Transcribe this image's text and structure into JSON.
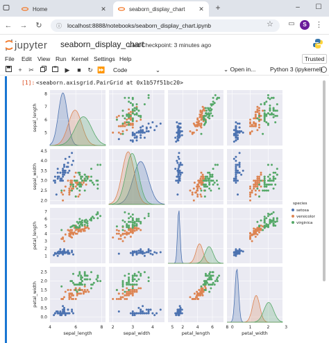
{
  "browser": {
    "tabs": [
      {
        "title": "Home",
        "active": false
      },
      {
        "title": "seaborn_display_chart",
        "active": true
      }
    ],
    "url": "localhost:8888/notebooks/seaborn_display_chart.ipynb",
    "profile_initial": "S",
    "icons": [
      "tab-list-icon",
      "jupyter-favicon",
      "close-icon",
      "new-tab-icon",
      "minimize-icon",
      "maximize-icon",
      "back-icon",
      "forward-icon",
      "reload-icon",
      "site-info-icon",
      "star-icon",
      "menu-icon"
    ]
  },
  "jupyter": {
    "logo_text": "jupyter",
    "notebook_title": "seaborn_display_chart",
    "checkpoint": "Last Checkpoint: 3 minutes ago",
    "menu": [
      "File",
      "Edit",
      "View",
      "Run",
      "Kernel",
      "Settings",
      "Help"
    ],
    "trusted": "Trusted",
    "cell_type": "Code",
    "open_in": "Open in...",
    "kernel": "Python 3 (ipykernel)",
    "toolbar_icons": [
      "save-icon",
      "add-cell-icon",
      "cut-icon",
      "copy-icon",
      "paste-icon",
      "run-icon",
      "stop-icon",
      "restart-icon",
      "fast-forward-icon"
    ]
  },
  "cell": {
    "prompt": "[1]:",
    "output_text": "<seaborn.axisgrid.PairGrid at 0x1b57f51bc20>"
  },
  "colors": {
    "setosa": "#4c72b0",
    "versicolor": "#dd8452",
    "virginica": "#55a868",
    "axes_bg": "#eaeaf2",
    "cell_bar": "#1976d2"
  },
  "chart_data": {
    "type": "scatter",
    "kind": "pairplot",
    "variables": [
      "sepal_length",
      "sepal_width",
      "petal_length",
      "petal_width"
    ],
    "hue": "species",
    "legend": {
      "title": "species",
      "entries": [
        "setosa",
        "versicolor",
        "virginica"
      ],
      "placement": "right"
    },
    "grid": true,
    "ranges": {
      "sepal_length": [
        4,
        8.3
      ],
      "sepal_width": [
        1.8,
        4.6
      ],
      "petal_length": [
        0,
        7.5
      ],
      "petal_width": [
        -0.3,
        2.8
      ]
    },
    "ticks": {
      "sepal_length": {
        "values": [
          4,
          6,
          8
        ],
        "labels": [
          "4",
          "6",
          "8"
        ]
      },
      "sepal_width": {
        "values": [
          2,
          3,
          4,
          5
        ],
        "labels": [
          "2",
          "3",
          "4",
          "5"
        ]
      },
      "petal_length": {
        "values": [
          2,
          4,
          6,
          8
        ],
        "labels": [
          "2",
          "4",
          "6",
          "8"
        ]
      },
      "petal_width": {
        "values": [
          0,
          1,
          2,
          3
        ],
        "labels": [
          "0",
          "1",
          "2",
          "3"
        ]
      }
    },
    "y_tick_labels": {
      "sepal_length": [
        "5",
        "6",
        "7",
        "8"
      ],
      "sepal_width": [
        "2.0",
        "2.5",
        "3.0",
        "3.5",
        "4.0",
        "4.5"
      ],
      "petal_length": [
        "1",
        "2",
        "3",
        "4",
        "5",
        "6",
        "7"
      ],
      "petal_width": [
        "0.0",
        "0.5",
        "1.0",
        "1.5",
        "2.0",
        "2.5"
      ]
    },
    "series": [
      {
        "name": "setosa",
        "mean": [
          5.0,
          3.4,
          1.46,
          0.25
        ],
        "sd": [
          0.35,
          0.38,
          0.17,
          0.1
        ],
        "points": [
          [
            5.1,
            3.5,
            1.4,
            0.2
          ],
          [
            4.9,
            3.0,
            1.4,
            0.2
          ],
          [
            4.7,
            3.2,
            1.3,
            0.2
          ],
          [
            4.6,
            3.1,
            1.5,
            0.2
          ],
          [
            5.0,
            3.6,
            1.4,
            0.2
          ],
          [
            5.4,
            3.9,
            1.7,
            0.4
          ],
          [
            4.6,
            3.4,
            1.4,
            0.3
          ],
          [
            5.0,
            3.4,
            1.5,
            0.2
          ],
          [
            4.4,
            2.9,
            1.4,
            0.2
          ],
          [
            4.9,
            3.1,
            1.5,
            0.1
          ],
          [
            5.4,
            3.7,
            1.5,
            0.2
          ],
          [
            4.8,
            3.4,
            1.6,
            0.2
          ],
          [
            4.8,
            3.0,
            1.4,
            0.1
          ],
          [
            4.3,
            3.0,
            1.1,
            0.1
          ],
          [
            5.8,
            4.0,
            1.2,
            0.2
          ],
          [
            5.7,
            4.4,
            1.5,
            0.4
          ],
          [
            5.4,
            3.9,
            1.3,
            0.4
          ],
          [
            5.1,
            3.5,
            1.4,
            0.3
          ],
          [
            5.7,
            3.8,
            1.7,
            0.3
          ],
          [
            5.1,
            3.8,
            1.5,
            0.3
          ],
          [
            5.4,
            3.4,
            1.7,
            0.2
          ],
          [
            5.1,
            3.7,
            1.5,
            0.4
          ],
          [
            4.6,
            3.6,
            1.0,
            0.2
          ],
          [
            5.1,
            3.3,
            1.7,
            0.5
          ],
          [
            4.8,
            3.4,
            1.9,
            0.2
          ],
          [
            5.0,
            3.0,
            1.6,
            0.2
          ],
          [
            5.0,
            3.4,
            1.6,
            0.4
          ],
          [
            5.2,
            3.5,
            1.5,
            0.2
          ],
          [
            5.2,
            3.4,
            1.4,
            0.2
          ],
          [
            4.7,
            3.2,
            1.6,
            0.2
          ],
          [
            4.8,
            3.1,
            1.6,
            0.2
          ],
          [
            5.4,
            3.4,
            1.5,
            0.4
          ],
          [
            5.2,
            4.1,
            1.5,
            0.1
          ],
          [
            5.5,
            4.2,
            1.4,
            0.2
          ],
          [
            4.9,
            3.1,
            1.5,
            0.2
          ],
          [
            5.0,
            3.2,
            1.2,
            0.2
          ],
          [
            5.5,
            3.5,
            1.3,
            0.2
          ],
          [
            4.4,
            3.0,
            1.3,
            0.2
          ],
          [
            5.1,
            3.4,
            1.5,
            0.2
          ],
          [
            5.0,
            3.5,
            1.3,
            0.3
          ],
          [
            4.5,
            2.3,
            1.3,
            0.3
          ],
          [
            4.4,
            3.2,
            1.3,
            0.2
          ],
          [
            5.0,
            3.5,
            1.6,
            0.6
          ],
          [
            5.1,
            3.8,
            1.9,
            0.4
          ],
          [
            4.8,
            3.0,
            1.4,
            0.3
          ],
          [
            5.1,
            3.8,
            1.6,
            0.2
          ],
          [
            4.6,
            3.2,
            1.4,
            0.2
          ],
          [
            5.3,
            3.7,
            1.5,
            0.2
          ],
          [
            5.0,
            3.3,
            1.4,
            0.2
          ]
        ]
      },
      {
        "name": "versicolor",
        "mean": [
          5.94,
          2.77,
          4.26,
          1.33
        ],
        "sd": [
          0.52,
          0.31,
          0.47,
          0.2
        ],
        "points": [
          [
            7.0,
            3.2,
            4.7,
            1.4
          ],
          [
            6.4,
            3.2,
            4.5,
            1.5
          ],
          [
            6.9,
            3.1,
            4.9,
            1.5
          ],
          [
            5.5,
            2.3,
            4.0,
            1.3
          ],
          [
            6.5,
            2.8,
            4.6,
            1.5
          ],
          [
            5.7,
            2.8,
            4.5,
            1.3
          ],
          [
            6.3,
            3.3,
            4.7,
            1.6
          ],
          [
            4.9,
            2.4,
            3.3,
            1.0
          ],
          [
            6.6,
            2.9,
            4.6,
            1.3
          ],
          [
            5.2,
            2.7,
            3.9,
            1.4
          ],
          [
            5.0,
            2.0,
            3.5,
            1.0
          ],
          [
            5.9,
            3.0,
            4.2,
            1.5
          ],
          [
            6.0,
            2.2,
            4.0,
            1.0
          ],
          [
            6.1,
            2.9,
            4.7,
            1.4
          ],
          [
            5.6,
            2.9,
            3.6,
            1.3
          ],
          [
            6.7,
            3.1,
            4.4,
            1.4
          ],
          [
            5.6,
            3.0,
            4.5,
            1.5
          ],
          [
            5.8,
            2.7,
            4.1,
            1.0
          ],
          [
            6.2,
            2.2,
            4.5,
            1.5
          ],
          [
            5.6,
            2.5,
            3.9,
            1.1
          ],
          [
            5.9,
            3.2,
            4.8,
            1.8
          ],
          [
            6.1,
            2.8,
            4.0,
            1.3
          ],
          [
            6.3,
            2.5,
            4.9,
            1.5
          ],
          [
            6.1,
            2.8,
            4.7,
            1.2
          ],
          [
            6.4,
            2.9,
            4.3,
            1.3
          ],
          [
            6.6,
            3.0,
            4.4,
            1.4
          ],
          [
            6.8,
            2.8,
            4.8,
            1.4
          ],
          [
            6.7,
            3.0,
            5.0,
            1.7
          ],
          [
            6.0,
            2.9,
            4.5,
            1.5
          ],
          [
            5.7,
            2.6,
            3.5,
            1.0
          ],
          [
            5.5,
            2.4,
            3.8,
            1.1
          ],
          [
            5.5,
            2.4,
            3.7,
            1.0
          ],
          [
            5.8,
            2.7,
            3.9,
            1.2
          ],
          [
            6.0,
            2.7,
            5.1,
            1.6
          ],
          [
            5.4,
            3.0,
            4.5,
            1.5
          ],
          [
            6.0,
            3.4,
            4.5,
            1.6
          ],
          [
            6.7,
            3.1,
            4.7,
            1.5
          ],
          [
            6.3,
            2.3,
            4.4,
            1.3
          ],
          [
            5.6,
            3.0,
            4.1,
            1.3
          ],
          [
            5.5,
            2.5,
            4.0,
            1.3
          ],
          [
            5.5,
            2.6,
            4.4,
            1.2
          ],
          [
            6.1,
            3.0,
            4.6,
            1.4
          ],
          [
            5.8,
            2.6,
            4.0,
            1.2
          ],
          [
            5.0,
            2.3,
            3.3,
            1.0
          ],
          [
            5.6,
            2.7,
            4.2,
            1.3
          ],
          [
            5.7,
            3.0,
            4.2,
            1.2
          ],
          [
            5.7,
            2.9,
            4.2,
            1.3
          ],
          [
            6.2,
            2.9,
            4.3,
            1.3
          ],
          [
            5.1,
            2.5,
            3.0,
            1.1
          ],
          [
            5.7,
            2.8,
            4.1,
            1.3
          ]
        ]
      },
      {
        "name": "virginica",
        "mean": [
          6.59,
          2.97,
          5.55,
          2.03
        ],
        "sd": [
          0.64,
          0.32,
          0.55,
          0.27
        ],
        "points": [
          [
            6.3,
            3.3,
            6.0,
            2.5
          ],
          [
            5.8,
            2.7,
            5.1,
            1.9
          ],
          [
            7.1,
            3.0,
            5.9,
            2.1
          ],
          [
            6.3,
            2.9,
            5.6,
            1.8
          ],
          [
            6.5,
            3.0,
            5.8,
            2.2
          ],
          [
            7.6,
            3.0,
            6.6,
            2.1
          ],
          [
            4.9,
            2.5,
            4.5,
            1.7
          ],
          [
            7.3,
            2.9,
            6.3,
            1.8
          ],
          [
            6.7,
            2.5,
            5.8,
            1.8
          ],
          [
            7.2,
            3.6,
            6.1,
            2.5
          ],
          [
            6.5,
            3.2,
            5.1,
            2.0
          ],
          [
            6.4,
            2.7,
            5.3,
            1.9
          ],
          [
            6.8,
            3.0,
            5.5,
            2.1
          ],
          [
            5.7,
            2.5,
            5.0,
            2.0
          ],
          [
            5.8,
            2.8,
            5.1,
            2.4
          ],
          [
            6.4,
            3.2,
            5.3,
            2.3
          ],
          [
            6.5,
            3.0,
            5.5,
            1.8
          ],
          [
            7.7,
            3.8,
            6.7,
            2.2
          ],
          [
            7.7,
            2.6,
            6.9,
            2.3
          ],
          [
            6.0,
            2.2,
            5.0,
            1.5
          ],
          [
            6.9,
            3.2,
            5.7,
            2.3
          ],
          [
            5.6,
            2.8,
            4.9,
            2.0
          ],
          [
            7.7,
            2.8,
            6.7,
            2.0
          ],
          [
            6.3,
            2.7,
            4.9,
            1.8
          ],
          [
            6.7,
            3.3,
            5.7,
            2.1
          ],
          [
            7.2,
            3.2,
            6.0,
            1.8
          ],
          [
            6.2,
            2.8,
            4.8,
            1.8
          ],
          [
            6.1,
            3.0,
            4.9,
            1.8
          ],
          [
            6.4,
            2.8,
            5.6,
            2.1
          ],
          [
            7.2,
            3.0,
            5.8,
            1.6
          ],
          [
            7.4,
            2.8,
            6.1,
            1.9
          ],
          [
            7.9,
            3.8,
            6.4,
            2.0
          ],
          [
            6.4,
            2.8,
            5.6,
            2.2
          ],
          [
            6.3,
            2.8,
            5.1,
            1.5
          ],
          [
            6.1,
            2.6,
            5.6,
            1.4
          ],
          [
            7.7,
            3.0,
            6.1,
            2.3
          ],
          [
            6.3,
            3.4,
            5.6,
            2.4
          ],
          [
            6.4,
            3.1,
            5.5,
            1.8
          ],
          [
            6.0,
            3.0,
            4.8,
            1.8
          ],
          [
            6.9,
            3.1,
            5.4,
            2.1
          ],
          [
            6.7,
            3.1,
            5.6,
            2.4
          ],
          [
            6.9,
            3.1,
            5.1,
            2.3
          ],
          [
            6.8,
            3.2,
            5.9,
            2.3
          ],
          [
            6.7,
            3.3,
            5.7,
            2.5
          ],
          [
            6.7,
            3.0,
            5.2,
            2.3
          ],
          [
            6.3,
            2.5,
            5.0,
            1.9
          ],
          [
            6.5,
            3.0,
            5.2,
            2.0
          ],
          [
            6.2,
            3.4,
            5.4,
            2.3
          ],
          [
            5.9,
            3.0,
            5.1,
            1.8
          ]
        ]
      }
    ]
  }
}
